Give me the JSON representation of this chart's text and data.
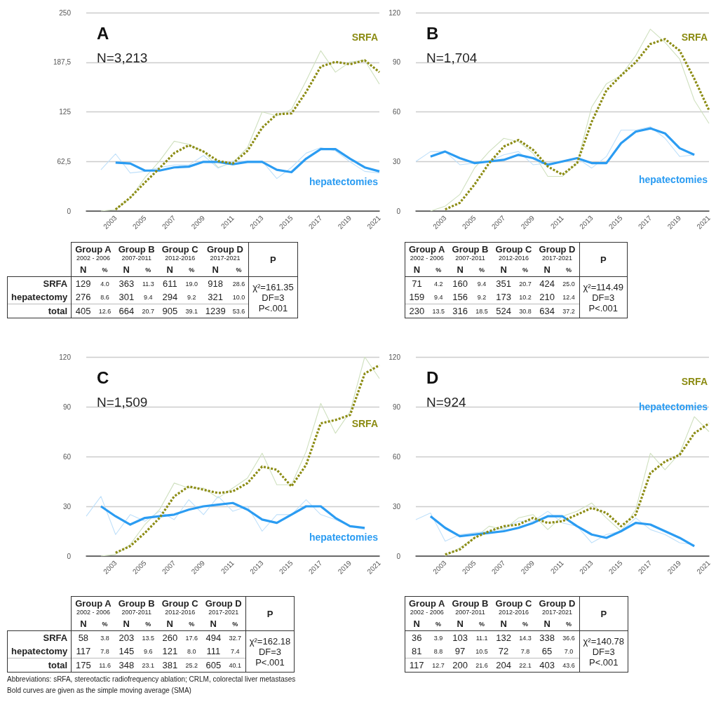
{
  "chart_data": [
    {
      "type": "line",
      "title": "A",
      "subtitle": "N=3,213",
      "x": [
        2002,
        2003,
        2004,
        2005,
        2006,
        2007,
        2008,
        2009,
        2010,
        2011,
        2012,
        2013,
        2014,
        2015,
        2016,
        2017,
        2018,
        2019,
        2020,
        2021
      ],
      "xlim": [
        2001,
        2021
      ],
      "xticks": [
        2003,
        2005,
        2007,
        2009,
        2011,
        2013,
        2015,
        2017,
        2019,
        2021
      ],
      "ylim": [
        0,
        250
      ],
      "yticks": [
        0,
        {
          "value": 62.5,
          "label": "62,5"
        },
        125,
        {
          "value": 187.5,
          "label": "187,5"
        },
        250
      ],
      "grid": "y",
      "legend": false,
      "marker": "none",
      "series": [
        {
          "color": "#cfe0bf",
          "line_style": "solid",
          "values": [
            0,
            2,
            16,
            42,
            63,
            88,
            84,
            75,
            55,
            61,
            80,
            125,
            120,
            128,
            164,
            202,
            175,
            188,
            190,
            160
          ]
        },
        {
          "color": "#bfe0fa",
          "line_style": "solid",
          "values": [
            52,
            72,
            48,
            50,
            55,
            58,
            58,
            70,
            54,
            63,
            63,
            63,
            41,
            55,
            73,
            80,
            76,
            62,
            50,
            48
          ]
        },
        {
          "name": "hepatectomies",
          "color": "#2b9cf2",
          "line_style": "solid",
          "values": [
            null,
            61,
            60,
            51,
            51,
            55,
            56,
            62,
            62,
            59,
            62,
            62,
            52,
            49,
            66,
            78,
            78,
            66,
            55,
            50
          ]
        },
        {
          "name": "SRFA",
          "color": "#8c8c14",
          "line_style": "dashed",
          "values": [
            null,
            2,
            17,
            36,
            54,
            73,
            83,
            75,
            63,
            60,
            76,
            105,
            122,
            123,
            150,
            182,
            188,
            185,
            190,
            175
          ]
        }
      ]
    },
    {
      "type": "line",
      "title": "B",
      "subtitle": "N=1,704",
      "x": [
        2001,
        2002,
        2003,
        2004,
        2005,
        2006,
        2007,
        2008,
        2009,
        2010,
        2011,
        2012,
        2013,
        2014,
        2015,
        2016,
        2017,
        2018,
        2019,
        2020,
        2021
      ],
      "xlim": [
        2001,
        2021
      ],
      "xticks": [
        2003,
        2005,
        2007,
        2009,
        2011,
        2013,
        2015,
        2017,
        2019,
        2021
      ],
      "ylim": [
        0,
        120
      ],
      "yticks": [
        0,
        30,
        60,
        90,
        120
      ],
      "grid": "y",
      "legend": false,
      "marker": "none",
      "series": [
        {
          "color": "#cfe0bf",
          "line_style": "solid",
          "values": [
            null,
            0,
            3,
            10,
            26,
            36,
            44,
            42,
            35,
            21,
            21,
            29,
            63,
            77,
            82,
            94,
            110,
            102,
            92,
            67,
            53
          ]
        },
        {
          "color": "#bfe0fa",
          "line_style": "solid",
          "values": [
            30,
            36,
            36,
            28,
            29,
            30,
            34,
            36,
            28,
            29,
            30,
            32,
            26,
            33,
            49,
            49,
            51,
            44,
            33,
            34,
            null
          ]
        },
        {
          "name": "hepatectomies",
          "color": "#2b9cf2",
          "line_style": "solid",
          "values": [
            null,
            33,
            36,
            32,
            29,
            30,
            31,
            34,
            32,
            28,
            30,
            32,
            29,
            29,
            41,
            48,
            50,
            47,
            38,
            34,
            null
          ]
        },
        {
          "name": "SRFA",
          "color": "#8c8c14",
          "line_style": "dashed",
          "values": [
            null,
            null,
            1,
            5,
            16,
            29,
            39,
            43,
            37,
            27,
            22,
            29,
            54,
            73,
            82,
            90,
            101,
            104,
            97,
            80,
            61
          ]
        }
      ]
    },
    {
      "type": "other",
      "categories": [
        "Group A\n2002 - 2006",
        "Group B\n2007-2011",
        "Group C\n2012-2016",
        "Group D\n2017-2021"
      ],
      "y_categories": [
        "SRFA",
        "hepatectomy",
        "total"
      ],
      "annotations": [
        "N",
        "%",
        "P",
        "χ²=161.35\nDF=3\nP<.001"
      ],
      "cell_labels": [
        [
          "129",
          "4.0",
          "363",
          "11.3",
          "611",
          "19.0",
          "918",
          "28.6"
        ],
        [
          "276",
          "8.6",
          "301",
          "9.4",
          "294",
          "9.2",
          "321",
          "10.0"
        ],
        [
          "405",
          "12.6",
          "664",
          "20.7",
          "905",
          "39.1",
          "1239",
          "53.6"
        ]
      ]
    },
    {
      "type": "other",
      "categories": [
        "Group A\n2002 - 2006",
        "Group B\n2007-2011",
        "Group C\n2012-2016",
        "Group D\n2017-2021"
      ],
      "y_categories": [
        null,
        null,
        null
      ],
      "annotations": [
        "N",
        "%",
        "P",
        "χ²=114.49\nDF=3\nP<.001"
      ],
      "cell_labels": [
        [
          "71",
          "4.2",
          "160",
          "9.4",
          "351",
          "20.7",
          "424",
          "25.0"
        ],
        [
          "159",
          "9.4",
          "156",
          "9.2",
          "173",
          "10.2",
          "210",
          "12.4"
        ],
        [
          "230",
          "13.5",
          "316",
          "18.5",
          "524",
          "30.8",
          "634",
          "37.2"
        ]
      ]
    },
    {
      "type": "line",
      "title": "C",
      "subtitle": "N=1,509",
      "x": [
        2001,
        2002,
        2003,
        2004,
        2005,
        2006,
        2007,
        2008,
        2009,
        2010,
        2011,
        2012,
        2013,
        2014,
        2015,
        2016,
        2017,
        2018,
        2019,
        2020,
        2021
      ],
      "xlim": [
        2001,
        2021
      ],
      "xticks": [
        2003,
        2005,
        2007,
        2009,
        2011,
        2013,
        2015,
        2017,
        2019,
        2021
      ],
      "ylim": [
        0,
        120
      ],
      "yticks": [
        0,
        30,
        60,
        90,
        120
      ],
      "grid": "y",
      "legend": false,
      "marker": "none",
      "series": [
        {
          "color": "#cfe0bf",
          "line_style": "solid",
          "values": [
            null,
            0,
            1,
            7,
            19,
            28,
            44,
            41,
            41,
            35,
            41,
            47,
            62,
            43,
            43,
            63,
            92,
            74,
            87,
            120,
            107
          ]
        },
        {
          "color": "#bfe0fa",
          "line_style": "solid",
          "values": [
            24,
            36,
            13,
            25,
            21,
            27,
            22,
            34,
            25,
            36,
            27,
            30,
            15,
            25,
            25,
            34,
            25,
            22,
            18,
            16,
            null
          ]
        },
        {
          "name": "hepatectomies",
          "color": "#2b9cf2",
          "line_style": "solid",
          "values": [
            null,
            30,
            24,
            19,
            23,
            24,
            25,
            28,
            30,
            31,
            32,
            28,
            22,
            20,
            25,
            30,
            30,
            23,
            18,
            17,
            null
          ]
        },
        {
          "name": "SRFA",
          "color": "#8c8c14",
          "line_style": "dashed",
          "values": [
            null,
            null,
            2,
            6,
            14,
            23,
            36,
            42,
            40,
            38,
            39,
            44,
            54,
            52,
            42,
            55,
            80,
            82,
            85,
            110,
            115
          ]
        }
      ]
    },
    {
      "type": "line",
      "title": "D",
      "subtitle": "N=924",
      "x": [
        2001,
        2002,
        2003,
        2004,
        2005,
        2006,
        2007,
        2008,
        2009,
        2010,
        2011,
        2012,
        2013,
        2014,
        2015,
        2016,
        2017,
        2018,
        2019,
        2020,
        2021
      ],
      "xlim": [
        2001,
        2021
      ],
      "xticks": [
        2003,
        2005,
        2007,
        2009,
        2011,
        2013,
        2015,
        2017,
        2019,
        2021
      ],
      "ylim": [
        0,
        120
      ],
      "yticks": [
        0,
        30,
        60,
        90,
        120
      ],
      "grid": "y",
      "legend": false,
      "marker": "none",
      "series": [
        {
          "color": "#cfe0bf",
          "line_style": "solid",
          "values": [
            null,
            null,
            0,
            5,
            11,
            18,
            16,
            23,
            25,
            16,
            24,
            27,
            32,
            23,
            15,
            28,
            62,
            52,
            62,
            84,
            75
          ]
        },
        {
          "color": "#bfe0fa",
          "line_style": "solid",
          "values": [
            22,
            26,
            9,
            13,
            14,
            15,
            17,
            21,
            21,
            27,
            20,
            18,
            8,
            13,
            15,
            23,
            16,
            13,
            8,
            7,
            null
          ]
        },
        {
          "name": "hepatectomies",
          "color": "#2b9cf2",
          "line_style": "solid",
          "values": [
            null,
            24,
            17,
            12,
            13,
            14,
            15,
            17,
            20,
            24,
            24,
            18,
            13,
            11,
            15,
            20,
            19,
            15,
            11,
            6,
            null
          ]
        },
        {
          "name": "SRFA",
          "color": "#8c8c14",
          "line_style": "dashed",
          "values": [
            null,
            null,
            1,
            4,
            11,
            15,
            18,
            19,
            23,
            20,
            21,
            25,
            29,
            26,
            18,
            25,
            50,
            57,
            61,
            74,
            80
          ]
        }
      ]
    },
    {
      "type": "other",
      "categories": [
        "Group A\n2002 - 2006",
        "Group B\n2007-2011",
        "Group C\n2012-2016",
        "Group D\n2017-2021"
      ],
      "y_categories": [
        "SRFA",
        "hepatectomy",
        "total"
      ],
      "annotations": [
        "N",
        "%",
        "P",
        "χ²=162.18\nDF=3\nP<.001",
        "Abbreviations: sRFA, stereotactic radiofrequency ablation; CRLM, colorectal liver metastases",
        "Bold curves are given as the simple moving average (SMA)"
      ],
      "cell_labels": [
        [
          "58",
          "3.8",
          "203",
          "13.5",
          "260",
          "17.6",
          "494",
          "32.7"
        ],
        [
          "117",
          "7.8",
          "145",
          "9.6",
          "121",
          "8.0",
          "111",
          "7.4"
        ],
        [
          "175",
          "11.6",
          "348",
          "23.1",
          "381",
          "25.2",
          "605",
          "40.1"
        ]
      ]
    },
    {
      "type": "other",
      "categories": [
        "Group A\n2002 - 2006",
        "Group B\n2007-2011",
        "Group C\n2012-2016",
        "Group D\n2017-2021"
      ],
      "y_categories": [
        null,
        null,
        null
      ],
      "annotations": [
        "N",
        "%",
        "P",
        "χ²=140.78\nDF=3\nP<.001"
      ],
      "cell_labels": [
        [
          "36",
          "3.9",
          "103",
          "11.1",
          "132",
          "14.3",
          "338",
          "36.6"
        ],
        [
          "81",
          "8.8",
          "97",
          "10.5",
          "72",
          "7.8",
          "65",
          "7.0"
        ],
        [
          "117",
          "12.7",
          "200",
          "21.6",
          "204",
          "22.1",
          "403",
          "43.6"
        ]
      ]
    }
  ]
}
